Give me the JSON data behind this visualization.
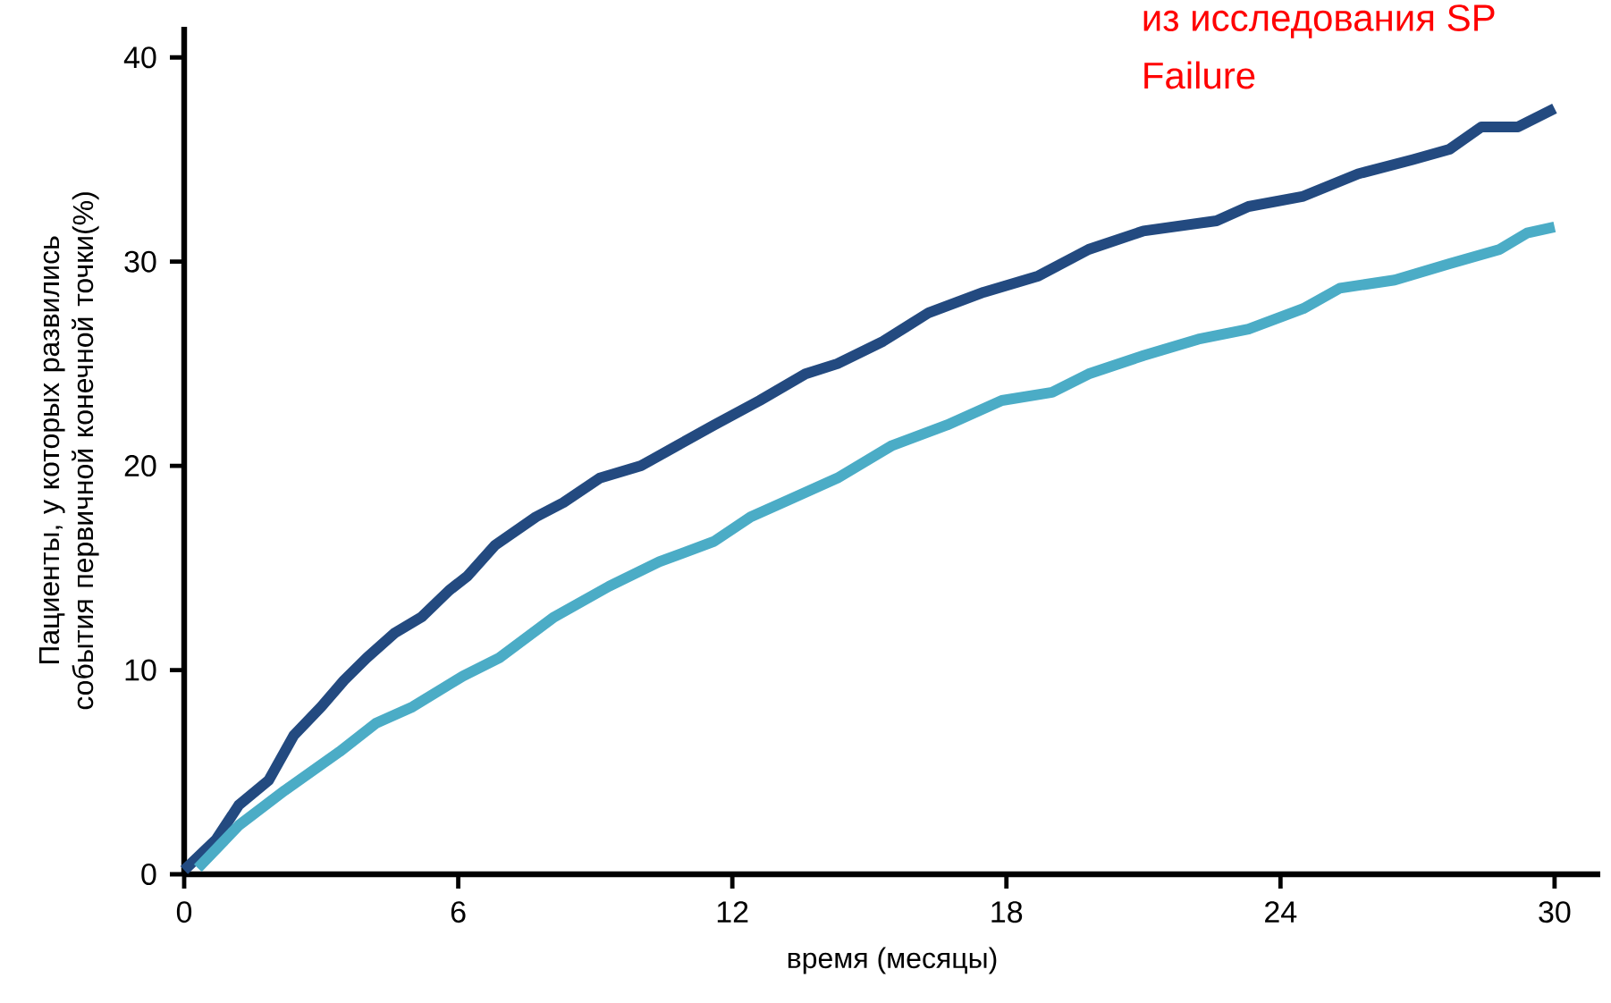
{
  "chart_data": {
    "type": "line",
    "xlabel": "время (месяцы)",
    "ylabel": "Пациенты, у которых развились события первичной конечной точки(%)",
    "annotations": [
      "из исследования SP",
      "Failure"
    ],
    "xlim": [
      0,
      31
    ],
    "ylim": [
      0,
      41.5
    ],
    "xticks": [
      0,
      6,
      12,
      18,
      24,
      30
    ],
    "yticks": [
      0,
      10,
      20,
      30,
      40
    ],
    "series": [
      {
        "color": "#234a80",
        "x": [
          0,
          0.7,
          1.2,
          1.85,
          2.4,
          3.0,
          3.5,
          4.0,
          4.6,
          5.2,
          5.8,
          6.2,
          6.8,
          7.7,
          8.3,
          9.1,
          10.0,
          10.8,
          11.6,
          12.6,
          13.6,
          14.3,
          15.3,
          16.3,
          17.5,
          18.7,
          19.8,
          21.0,
          22.6,
          23.3,
          24.5,
          25.7,
          26.9,
          27.7,
          28.4,
          29.2,
          30
        ],
        "values": [
          0.2,
          1.7,
          3.4,
          4.6,
          6.8,
          8.2,
          9.5,
          10.6,
          11.8,
          12.6,
          13.9,
          14.6,
          16.1,
          17.5,
          18.2,
          19.4,
          20.0,
          21.0,
          22.0,
          23.2,
          24.5,
          25.0,
          26.1,
          27.5,
          28.5,
          29.3,
          30.6,
          31.5,
          32.0,
          32.7,
          33.2,
          34.3,
          35.0,
          35.5,
          36.6,
          36.6,
          37.5
        ]
      },
      {
        "color": "#4bacc6",
        "x": [
          0.3,
          1.2,
          2.2,
          3.4,
          4.2,
          5.0,
          6.1,
          6.9,
          8.1,
          9.3,
          10.4,
          11.6,
          12.4,
          13.2,
          14.3,
          15.5,
          16.7,
          17.9,
          19.0,
          19.8,
          21.0,
          22.2,
          23.3,
          24.5,
          25.3,
          26.5,
          27.7,
          28.8,
          29.4,
          30
        ],
        "values": [
          0.3,
          2.4,
          4.1,
          6.0,
          7.4,
          8.2,
          9.7,
          10.6,
          12.6,
          14.1,
          15.3,
          16.3,
          17.5,
          18.3,
          19.4,
          21.0,
          22.0,
          23.2,
          23.6,
          24.5,
          25.4,
          26.2,
          26.7,
          27.7,
          28.7,
          29.1,
          29.9,
          30.6,
          31.4,
          31.7
        ]
      }
    ]
  }
}
